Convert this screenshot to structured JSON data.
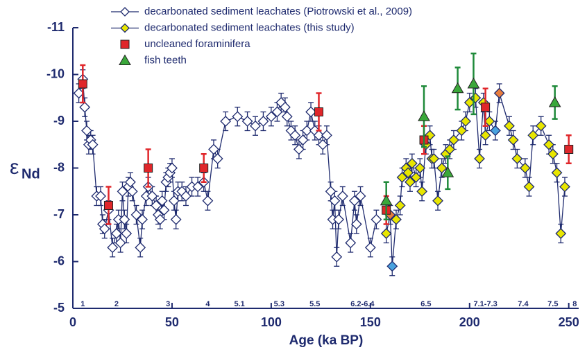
{
  "chart_data": {
    "type": "scatter",
    "xlabel": "Age (ka BP)",
    "ylabel_symbol": "ε",
    "ylabel_subscript": "Nd",
    "xlim": [
      0,
      255
    ],
    "ylim": [
      -5,
      -11
    ],
    "xticks": [
      0,
      50,
      100,
      150,
      200,
      250
    ],
    "yticks": [
      -5,
      -6,
      -7,
      -8,
      -9,
      -10,
      -11
    ],
    "annotations": [
      {
        "text": "1",
        "x": 5
      },
      {
        "text": "2",
        "x": 22
      },
      {
        "text": "3",
        "x": 48
      },
      {
        "text": "4",
        "x": 68
      },
      {
        "text": "5.1",
        "x": 84
      },
      {
        "text": "5.3",
        "x": 104
      },
      {
        "text": "5.5",
        "x": 122
      },
      {
        "text": "6.2-6.4",
        "x": 146
      },
      {
        "text": "6.5",
        "x": 178
      },
      {
        "text": "7.1-7.3",
        "x": 208
      },
      {
        "text": "7.4",
        "x": 227
      },
      {
        "text": "7.5",
        "x": 242
      },
      {
        "text": "8",
        "x": 253
      }
    ],
    "series": [
      {
        "name": "decarbonated sediment leachates (Piotrowski et al., 2009)",
        "marker": "diamond",
        "color": "#ffffff",
        "line_color": "#1e2a6e",
        "error_color": "#1e2a6e",
        "error": 0.2,
        "x": [
          3,
          5,
          6,
          7,
          8,
          9,
          10,
          12,
          14,
          15,
          16,
          18,
          20,
          22,
          23,
          24,
          25,
          26,
          27,
          28,
          29,
          30,
          32,
          34,
          35,
          37,
          38,
          40,
          42,
          43,
          44,
          45,
          46,
          47,
          48,
          49,
          50,
          51,
          52,
          53,
          55,
          57,
          60,
          63,
          66,
          68,
          71,
          73,
          77,
          83,
          88,
          92,
          96,
          100,
          103,
          105,
          107,
          108,
          110,
          112,
          114,
          116,
          118,
          120,
          122,
          124,
          126,
          128,
          130,
          131,
          132,
          133,
          134,
          136,
          140,
          142,
          143,
          145,
          150,
          153
        ],
        "values": [
          -9.6,
          -9.9,
          -9.3,
          -8.8,
          -8.5,
          -8.6,
          -8.5,
          -7.4,
          -7.4,
          -6.8,
          -6.7,
          -7.1,
          -6.3,
          -6.6,
          -6.9,
          -6.4,
          -7.5,
          -6.9,
          -6.6,
          -7.6,
          -7.7,
          -7.5,
          -7.0,
          -6.3,
          -6.9,
          -7.4,
          -7.6,
          -7.4,
          -7.2,
          -7.0,
          -6.9,
          -7.3,
          -7.1,
          -7.7,
          -7.8,
          -7.9,
          -8.0,
          -7.3,
          -6.9,
          -7.5,
          -7.5,
          -7.4,
          -7.6,
          -7.6,
          -7.7,
          -7.3,
          -8.4,
          -8.2,
          -9.0,
          -9.1,
          -9.0,
          -8.9,
          -9.0,
          -9.1,
          -9.2,
          -9.4,
          -9.3,
          -9.1,
          -8.8,
          -8.7,
          -8.4,
          -8.6,
          -8.8,
          -9.2,
          -8.8,
          -8.7,
          -8.5,
          -8.7,
          -7.5,
          -6.9,
          -7.3,
          -6.1,
          -6.9,
          -7.4,
          -6.4,
          -7.3,
          -6.8,
          -7.4,
          -6.3,
          -6.9
        ]
      },
      {
        "name": "decarbonated sediment leachates (this study)",
        "marker": "diamond",
        "color": "#e8e600",
        "line_color": "#1e2a6e",
        "error_color": "#1e2a6e",
        "error": 0.2,
        "x": [
          158,
          160,
          161,
          163,
          165,
          166,
          168,
          169,
          170,
          171,
          173,
          175,
          176,
          178,
          180,
          181,
          182,
          184,
          186,
          188,
          190,
          192,
          196,
          198,
          200,
          203,
          205,
          207,
          208,
          210,
          213,
          215,
          220,
          222,
          224,
          228,
          230,
          232,
          236,
          240,
          242,
          244,
          246,
          248
        ],
        "values": [
          -6.6,
          -7.0,
          -5.9,
          -6.9,
          -7.2,
          -7.8,
          -8.0,
          -7.9,
          -7.7,
          -8.1,
          -7.8,
          -8.0,
          -7.5,
          -8.5,
          -8.7,
          -8.2,
          -8.2,
          -7.3,
          -8.0,
          -8.3,
          -8.4,
          -8.6,
          -8.8,
          -9.0,
          -9.4,
          -9.5,
          -8.2,
          -9.4,
          -8.7,
          -9.0,
          -8.8,
          -9.6,
          -8.9,
          -8.6,
          -8.2,
          -8.0,
          -7.6,
          -8.7,
          -8.9,
          -8.5,
          -8.3,
          -7.9,
          -6.6,
          -7.6
        ],
        "point_colors": [
          "#e8e600",
          "#e87d3e",
          "#4aa3df",
          "#e8e600",
          "#e8e600",
          "#e8e600",
          "#e8e600",
          "#e8e600",
          "#e8e600",
          "#e8e600",
          "#e8e600",
          "#e8e600",
          "#e8e600",
          "#e8e600",
          "#e8e600",
          "#e8e600",
          "#e8e600",
          "#e8e600",
          "#e8e600",
          "#e8e600",
          "#e8e600",
          "#e8e600",
          "#e8e600",
          "#e8e600",
          "#e8e600",
          "#e8e600",
          "#e8e600",
          "#e8e600",
          "#e8e600",
          "#e8e600",
          "#4aa3df",
          "#e87d3e",
          "#e8e600",
          "#e8e600",
          "#e8e600",
          "#e8e600",
          "#e8e600",
          "#e8e600",
          "#e8e600",
          "#e8e600",
          "#e8e600",
          "#e8e600",
          "#e8e600",
          "#e8e600"
        ]
      },
      {
        "name": "uncleaned foraminifera",
        "marker": "square",
        "color": "#e0262a",
        "error_color": "#e0262a",
        "x": [
          5,
          18,
          38,
          66,
          124,
          158,
          177,
          208,
          250
        ],
        "values": [
          -9.8,
          -7.2,
          -8.0,
          -8.0,
          -9.2,
          -7.1,
          -8.6,
          -9.3,
          -8.4
        ],
        "errors": [
          0.4,
          0.4,
          0.4,
          0.3,
          0.4,
          0.3,
          0.3,
          0.4,
          0.3
        ]
      },
      {
        "name": "fish teeth",
        "marker": "triangle",
        "color": "#3aa83a",
        "error_color": "#1f8a3a",
        "x": [
          158,
          177,
          189,
          194,
          202,
          243
        ],
        "values": [
          -7.3,
          -9.1,
          -7.9,
          -9.7,
          -9.8,
          -9.4
        ],
        "errors": [
          0.4,
          0.65,
          0.35,
          0.45,
          0.65,
          0.35
        ]
      }
    ]
  }
}
